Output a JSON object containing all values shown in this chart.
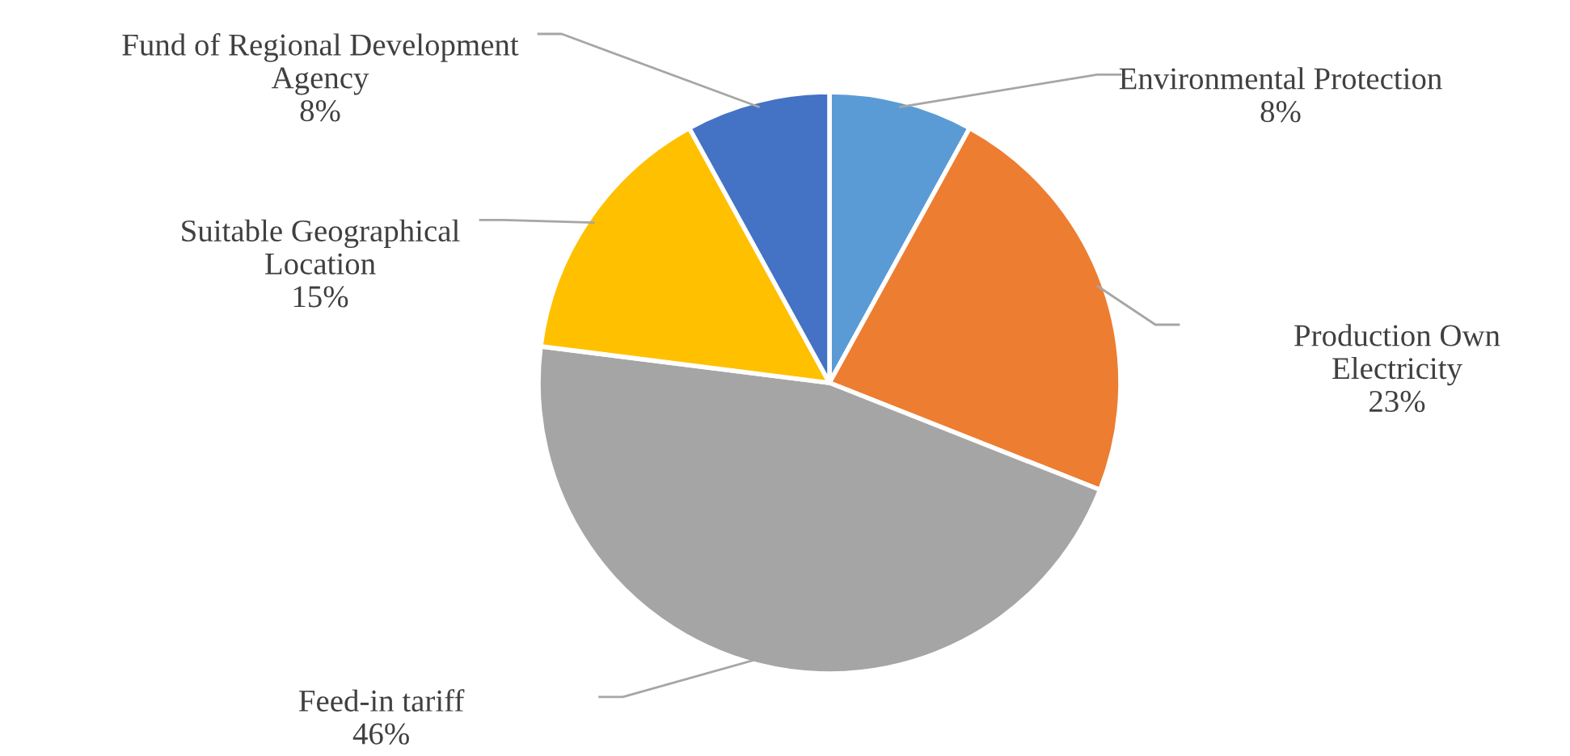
{
  "chart_data": {
    "type": "pie",
    "categories": [
      "Environmental Protection",
      "Production Own Electricity",
      "Feed-in tariff",
      "Suitable Geographical Location",
      "Fund of Regional Development Agency"
    ],
    "values": [
      8,
      23,
      46,
      15,
      8
    ],
    "colors": [
      "#5b9bd5",
      "#ed7d31",
      "#a5a5a5",
      "#ffc000",
      "#4472c4"
    ],
    "value_labels": [
      "8%",
      "23%",
      "46%",
      "15%",
      "8%"
    ],
    "legend": false
  }
}
